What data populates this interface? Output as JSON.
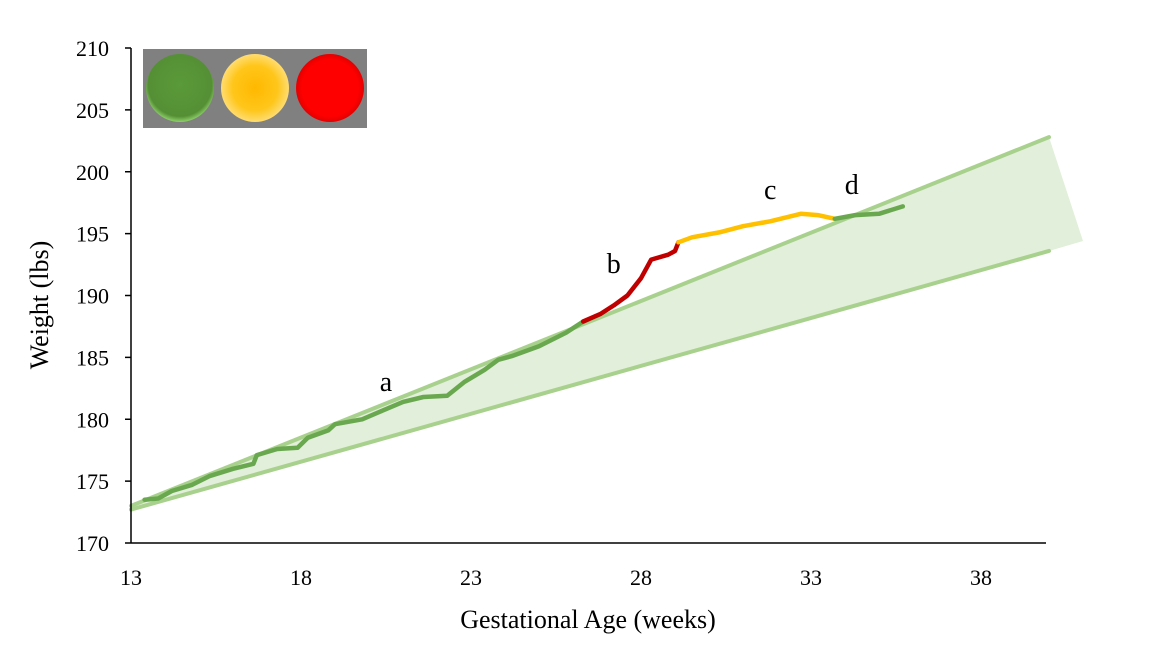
{
  "chart_data": {
    "type": "line",
    "xlabel": "Gestational Age (weeks)",
    "ylabel": "Weight (lbs)",
    "xlim": [
      13,
      40
    ],
    "ylim": [
      170,
      210
    ],
    "x_ticks": [
      13,
      18,
      23,
      28,
      33,
      38
    ],
    "y_ticks": [
      170,
      175,
      180,
      185,
      190,
      195,
      200,
      205,
      210
    ],
    "grid": false,
    "colors": {
      "green": "#6aa84f",
      "yellow": "#ffc000",
      "red": "#c00000",
      "band_fill": "#e2efda",
      "band_line": "#a9d18e",
      "legend_bg": "#808080"
    },
    "reference_band": {
      "name": "",
      "upper": [
        [
          13,
          173.0
        ],
        [
          40,
          202.8
        ]
      ],
      "lower": [
        [
          13,
          172.7
        ],
        [
          40,
          193.6
        ]
      ]
    },
    "series": [
      {
        "status": "green",
        "points": [
          [
            13.4,
            173.5
          ],
          [
            13.8,
            173.6
          ],
          [
            14.2,
            174.2
          ],
          [
            14.8,
            174.7
          ],
          [
            15.3,
            175.4
          ],
          [
            16.0,
            176.0
          ],
          [
            16.6,
            176.4
          ],
          [
            16.7,
            177.1
          ],
          [
            17.3,
            177.6
          ],
          [
            17.9,
            177.7
          ],
          [
            18.2,
            178.5
          ],
          [
            18.8,
            179.1
          ],
          [
            19.0,
            179.6
          ],
          [
            19.8,
            180.0
          ],
          [
            20.4,
            180.7
          ],
          [
            21.0,
            181.4
          ],
          [
            21.6,
            181.8
          ],
          [
            22.3,
            181.9
          ],
          [
            22.8,
            183.0
          ],
          [
            23.4,
            184.0
          ],
          [
            23.8,
            184.8
          ],
          [
            24.2,
            185.1
          ],
          [
            25.0,
            185.9
          ],
          [
            25.8,
            187.0
          ],
          [
            26.3,
            187.9
          ]
        ]
      },
      {
        "status": "red",
        "points": [
          [
            26.3,
            187.9
          ],
          [
            26.8,
            188.5
          ],
          [
            27.2,
            189.2
          ],
          [
            27.6,
            190.0
          ],
          [
            28.0,
            191.4
          ],
          [
            28.3,
            192.9
          ],
          [
            28.8,
            193.3
          ],
          [
            29.0,
            193.6
          ],
          [
            29.1,
            194.3
          ]
        ]
      },
      {
        "status": "yellow",
        "points": [
          [
            29.1,
            194.3
          ],
          [
            29.5,
            194.7
          ],
          [
            30.3,
            195.1
          ],
          [
            31.0,
            195.6
          ],
          [
            31.8,
            196.0
          ],
          [
            32.7,
            196.6
          ],
          [
            33.2,
            196.5
          ],
          [
            33.7,
            196.2
          ]
        ]
      },
      {
        "status": "green",
        "points": [
          [
            33.7,
            196.2
          ],
          [
            34.3,
            196.5
          ],
          [
            35.0,
            196.6
          ],
          [
            35.7,
            197.2
          ]
        ]
      }
    ],
    "annotations": [
      {
        "text": "a",
        "x": 20.5,
        "y": 182.3
      },
      {
        "text": "b",
        "x": 27.2,
        "y": 191.8
      },
      {
        "text": "c",
        "x": 31.8,
        "y": 197.8
      },
      {
        "text": "d",
        "x": 34.2,
        "y": 198.2
      }
    ],
    "legend": {
      "placement": "top-left",
      "lights": [
        {
          "name": "green",
          "color": "#6aa84f"
        },
        {
          "name": "yellow",
          "color": "#ffc000"
        },
        {
          "name": "red",
          "color": "#ff0000"
        }
      ]
    }
  }
}
